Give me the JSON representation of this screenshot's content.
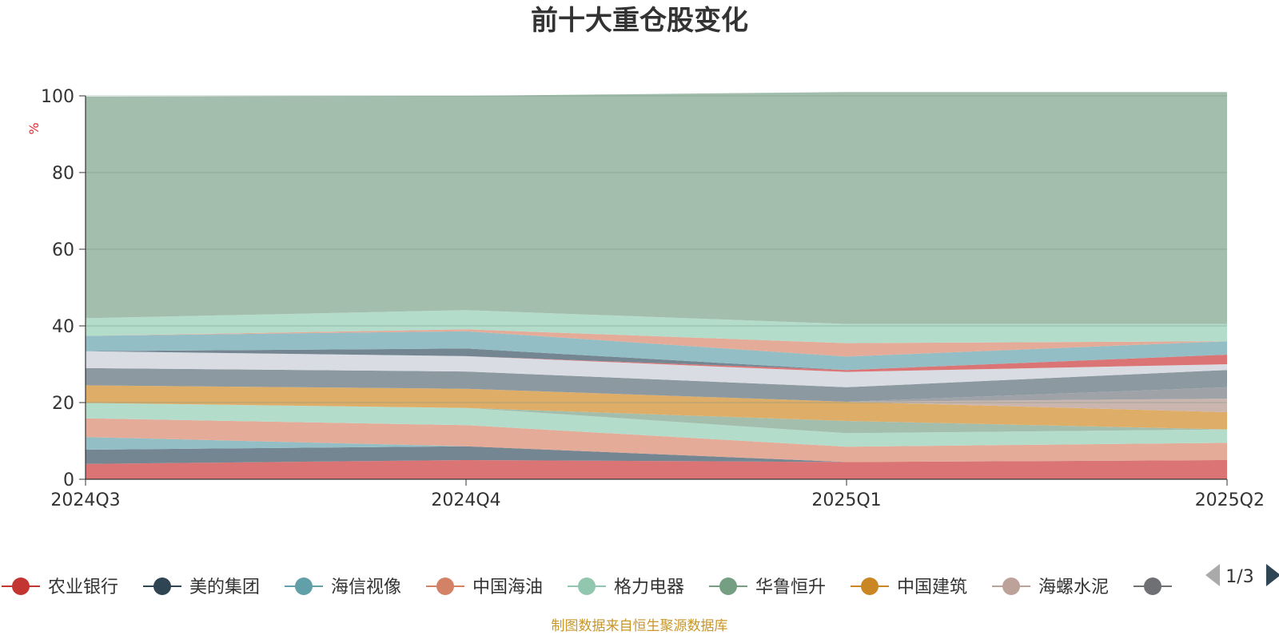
{
  "chart_data": {
    "type": "area",
    "stacked": true,
    "title": "前十大重仓股变化",
    "unit": "%",
    "categories": [
      "2024Q3",
      "2024Q4",
      "2025Q1",
      "2025Q2"
    ],
    "ylim": [
      0,
      100
    ],
    "yticks": [
      0,
      20,
      40,
      60,
      80,
      100
    ],
    "grid": true,
    "legend_position": "bottom",
    "legend_page": "1/3",
    "source": "制图数据来自恒生聚源数据库",
    "series": [
      {
        "name": "农业银行",
        "color": "#d96d6d",
        "values": [
          4.0,
          5.0,
          4.5,
          5.0
        ]
      },
      {
        "name": "美的集团",
        "color": "#6e7f8d",
        "values": [
          3.7,
          3.6,
          0.0,
          0.0
        ]
      },
      {
        "name": "海信视像",
        "color": "#8dbac2",
        "values": [
          3.3,
          0.0,
          0.0,
          0.0
        ]
      },
      {
        "name": "中国海油",
        "color": "#e2a692",
        "values": [
          4.9,
          5.5,
          4.0,
          4.5
        ]
      },
      {
        "name": "格力电器",
        "color": "#b0dac8",
        "values": [
          4.0,
          4.5,
          3.5,
          3.5
        ]
      },
      {
        "name": "华鲁恒升",
        "color": "#9ebba9",
        "values": [
          0.0,
          0.0,
          3.2,
          0.0
        ]
      },
      {
        "name": "中国建筑",
        "color": "#dcaa60",
        "values": [
          4.6,
          5.0,
          5.0,
          4.5
        ]
      },
      {
        "name": "海螺水泥",
        "color": "#c8b2ab",
        "values": [
          0.0,
          0.0,
          0.0,
          3.5
        ]
      },
      {
        "name": "",
        "color": "#9a9ea3",
        "values": [
          0.0,
          0.0,
          0.0,
          3.0
        ]
      },
      {
        "name": "",
        "color": "#87939c",
        "values": [
          4.5,
          4.5,
          3.8,
          4.5
        ]
      },
      {
        "name": "",
        "color": "#d7dbe2",
        "values": [
          4.4,
          4.0,
          4.0,
          1.5
        ]
      },
      {
        "name": "",
        "color": "#d96d6d",
        "values": [
          0.0,
          0.0,
          0.5,
          2.5
        ]
      },
      {
        "name": "",
        "color": "#6e7f8d",
        "values": [
          0.0,
          2.0,
          0.0,
          0.0
        ]
      },
      {
        "name": "",
        "color": "#8dbac2",
        "values": [
          4.0,
          4.5,
          3.5,
          3.5
        ]
      },
      {
        "name": "",
        "color": "#e2a692",
        "values": [
          0.0,
          0.5,
          3.5,
          0.0
        ]
      },
      {
        "name": "",
        "color": "#b0dac8",
        "values": [
          4.6,
          5.0,
          5.0,
          4.5
        ]
      },
      {
        "name": "",
        "color": "#9ebba9",
        "values": [
          57.8,
          55.9,
          60.5,
          60.5
        ]
      }
    ],
    "legend": [
      {
        "name": "农业银行",
        "color": "#c23531"
      },
      {
        "name": "美的集团",
        "color": "#2f4554"
      },
      {
        "name": "海信视像",
        "color": "#61a0a8"
      },
      {
        "name": "中国海油",
        "color": "#d48265"
      },
      {
        "name": "格力电器",
        "color": "#91c7ae"
      },
      {
        "name": "华鲁恒升",
        "color": "#749f83"
      },
      {
        "name": "中国建筑",
        "color": "#ca8622"
      },
      {
        "name": "海螺水泥",
        "color": "#bda29a"
      },
      {
        "name": "",
        "color": "#6e7074"
      }
    ]
  }
}
